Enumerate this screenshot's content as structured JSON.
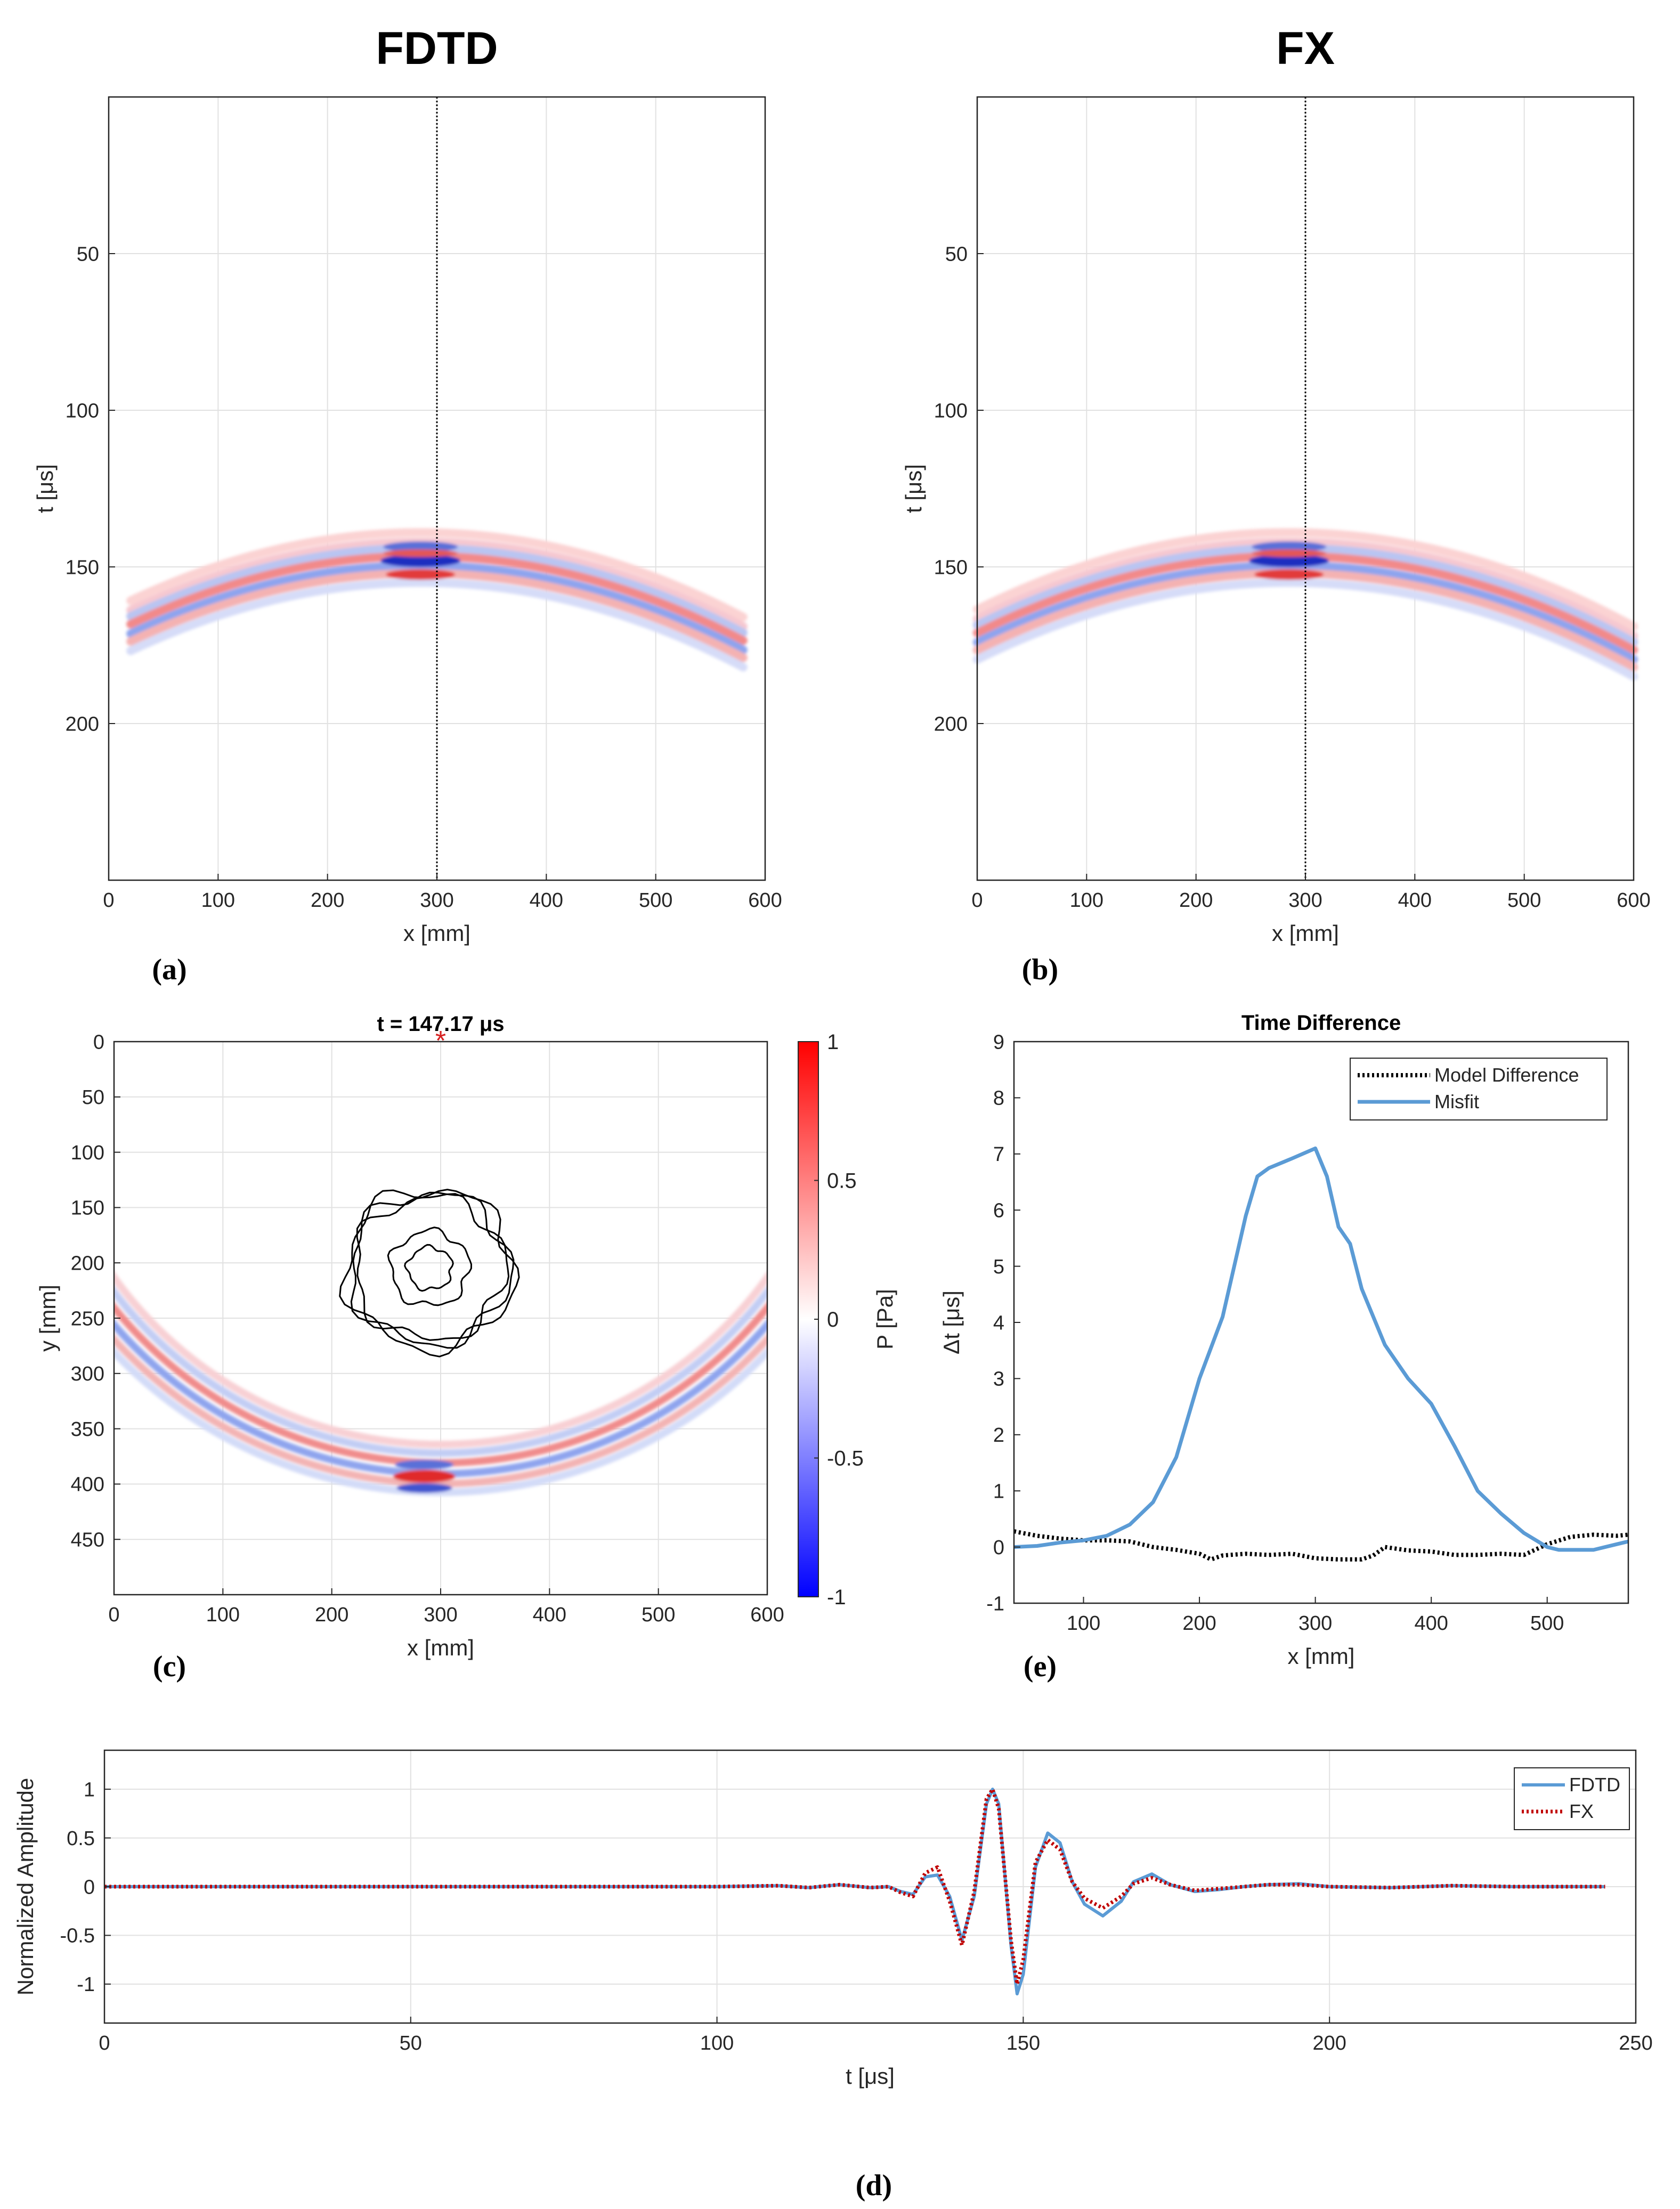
{
  "figure": {
    "panel_labels": {
      "a": "(a)",
      "b": "(b)",
      "c": "(c)",
      "d": "(d)",
      "e": "(e)"
    }
  },
  "chart_data": [
    {
      "id": "a",
      "type": "heatmap",
      "title": "FDTD",
      "xlabel": "x [mm]",
      "ylabel": "t [μs]",
      "xlim": [
        0,
        600
      ],
      "ylim": [
        0,
        250
      ],
      "y_reversed": true,
      "xticks": [
        0,
        100,
        200,
        300,
        400,
        500,
        600
      ],
      "yticks": [
        50,
        100,
        150,
        200
      ],
      "grid": true,
      "colormap": "blue-white-red",
      "receiver_line_x": 300,
      "wavefront": {
        "x_start": 20,
        "x_end": 580,
        "t_edges": 175,
        "t_peak": 148,
        "peak_x": 285
      }
    },
    {
      "id": "b",
      "type": "heatmap",
      "title": "FX",
      "xlabel": "x [mm]",
      "ylabel": "t [μs]",
      "xlim": [
        0,
        600
      ],
      "ylim": [
        0,
        250
      ],
      "y_reversed": true,
      "xticks": [
        0,
        100,
        200,
        300,
        400,
        500,
        600
      ],
      "yticks": [
        50,
        100,
        150,
        200
      ],
      "grid": true,
      "colormap": "blue-white-red",
      "receiver_line_x": 300,
      "wavefront": {
        "x_start": 0,
        "x_end": 600,
        "t_edges": 178,
        "t_peak": 148,
        "peak_x": 285
      }
    },
    {
      "id": "c",
      "type": "heatmap",
      "title": "t = 147.17 μs",
      "xlabel": "x [mm]",
      "ylabel": "y [mm]",
      "xlim": [
        0,
        600
      ],
      "ylim": [
        0,
        500
      ],
      "y_reversed": true,
      "xticks": [
        0,
        100,
        200,
        300,
        400,
        500,
        600
      ],
      "yticks": [
        0,
        50,
        100,
        150,
        200,
        250,
        300,
        350,
        400,
        450
      ],
      "grid": true,
      "source": {
        "x": 300,
        "y": 0,
        "marker": "*",
        "color": "#d62020"
      },
      "inclusion_center": {
        "x": 290,
        "y": 205
      },
      "colorbar": {
        "label": "P [Pa]",
        "min": -1,
        "max": 1,
        "ticks": [
          1,
          0.5,
          0,
          -0.5,
          -1
        ],
        "tick_labels": [
          "1",
          "0.5",
          "0",
          "-0.5",
          "-1"
        ]
      }
    },
    {
      "id": "e",
      "type": "line",
      "title": "Time Difference",
      "xlabel": "x [mm]",
      "ylabel": "Δt [μs]",
      "xlim": [
        40,
        570
      ],
      "ylim": [
        -1,
        9
      ],
      "xticks": [
        100,
        200,
        300,
        400,
        500
      ],
      "yticks": [
        -1,
        0,
        1,
        2,
        3,
        4,
        5,
        6,
        7,
        8,
        9
      ],
      "grid": false,
      "legend": "top-right",
      "series": [
        {
          "name": "Model Difference",
          "color": "#000000",
          "style": "dotted",
          "x": [
            40,
            60,
            80,
            100,
            120,
            140,
            160,
            180,
            200,
            210,
            220,
            240,
            260,
            280,
            300,
            320,
            340,
            350,
            360,
            380,
            400,
            420,
            440,
            460,
            480,
            500,
            520,
            540,
            560,
            570
          ],
          "y": [
            0.28,
            0.2,
            0.15,
            0.12,
            0.12,
            0.1,
            0.0,
            -0.05,
            -0.12,
            -0.22,
            -0.15,
            -0.12,
            -0.14,
            -0.12,
            -0.2,
            -0.22,
            -0.22,
            -0.15,
            0.0,
            -0.06,
            -0.08,
            -0.14,
            -0.14,
            -0.12,
            -0.14,
            0.05,
            0.18,
            0.22,
            0.2,
            0.22
          ]
        },
        {
          "name": "Misfit",
          "color": "#5b9bd5",
          "style": "solid",
          "x": [
            40,
            60,
            80,
            100,
            120,
            130,
            140,
            160,
            180,
            200,
            220,
            240,
            250,
            260,
            280,
            300,
            310,
            320,
            330,
            340,
            360,
            380,
            400,
            420,
            440,
            460,
            480,
            500,
            510,
            520,
            540,
            560,
            570
          ],
          "y": [
            0.0,
            0.02,
            0.08,
            0.12,
            0.2,
            0.3,
            0.4,
            0.8,
            1.6,
            3.0,
            4.1,
            5.9,
            6.6,
            6.75,
            6.92,
            7.1,
            6.6,
            5.7,
            5.4,
            4.6,
            3.6,
            3.0,
            2.55,
            1.8,
            1.0,
            0.6,
            0.25,
            0.0,
            -0.05,
            -0.05,
            -0.05,
            0.05,
            0.1
          ]
        }
      ]
    },
    {
      "id": "d",
      "type": "line",
      "title": "",
      "xlabel": "t [μs]",
      "ylabel": "Normalized Amplitude",
      "xlim": [
        0,
        250
      ],
      "ylim": [
        -1.4,
        1.4
      ],
      "xticks": [
        0,
        50,
        100,
        150,
        200,
        250
      ],
      "yticks": [
        1,
        0.5,
        0,
        -0.5,
        -1
      ],
      "grid": true,
      "legend": "top-right",
      "series": [
        {
          "name": "FDTD",
          "color": "#5b9bd5",
          "style": "solid",
          "x": [
            0,
            20,
            40,
            60,
            80,
            100,
            110,
            115,
            120,
            125,
            128,
            130,
            132,
            134,
            136,
            138,
            140,
            142,
            144,
            145,
            146,
            148,
            149,
            150,
            152,
            154,
            156,
            158,
            160,
            163,
            166,
            168,
            171,
            174,
            178,
            182,
            186,
            190,
            195,
            200,
            210,
            220,
            230,
            240,
            245
          ],
          "y": [
            0,
            0,
            0,
            0,
            0,
            0,
            0.01,
            -0.01,
            0.02,
            -0.01,
            0.0,
            -0.05,
            -0.08,
            0.1,
            0.12,
            -0.1,
            -0.55,
            -0.1,
            0.85,
            1.0,
            0.85,
            -0.6,
            -1.1,
            -0.9,
            0.2,
            0.55,
            0.45,
            0.05,
            -0.18,
            -0.3,
            -0.15,
            0.05,
            0.13,
            0.02,
            -0.05,
            -0.03,
            0.0,
            0.02,
            0.03,
            0.0,
            -0.01,
            0.01,
            0.0,
            0.0,
            0.0
          ]
        },
        {
          "name": "FX",
          "color": "#c00000",
          "style": "dotted",
          "x": [
            0,
            20,
            40,
            60,
            80,
            100,
            110,
            115,
            120,
            125,
            128,
            130,
            132,
            134,
            136,
            138,
            140,
            142,
            144,
            145,
            146,
            148,
            149,
            150,
            152,
            154,
            156,
            158,
            160,
            163,
            166,
            168,
            171,
            174,
            178,
            182,
            186,
            190,
            195,
            200,
            210,
            220,
            230,
            240,
            245
          ],
          "y": [
            0,
            0,
            0,
            0,
            0,
            0,
            0.01,
            -0.01,
            0.02,
            -0.01,
            0.0,
            -0.06,
            -0.1,
            0.14,
            0.2,
            -0.15,
            -0.6,
            -0.05,
            0.9,
            1.0,
            0.8,
            -0.55,
            -1.0,
            -0.75,
            0.25,
            0.48,
            0.38,
            0.05,
            -0.12,
            -0.22,
            -0.1,
            0.03,
            0.09,
            0.02,
            -0.04,
            -0.02,
            0.0,
            0.02,
            0.02,
            0.0,
            -0.01,
            0.01,
            0.0,
            0.0,
            0.0
          ]
        }
      ]
    }
  ]
}
